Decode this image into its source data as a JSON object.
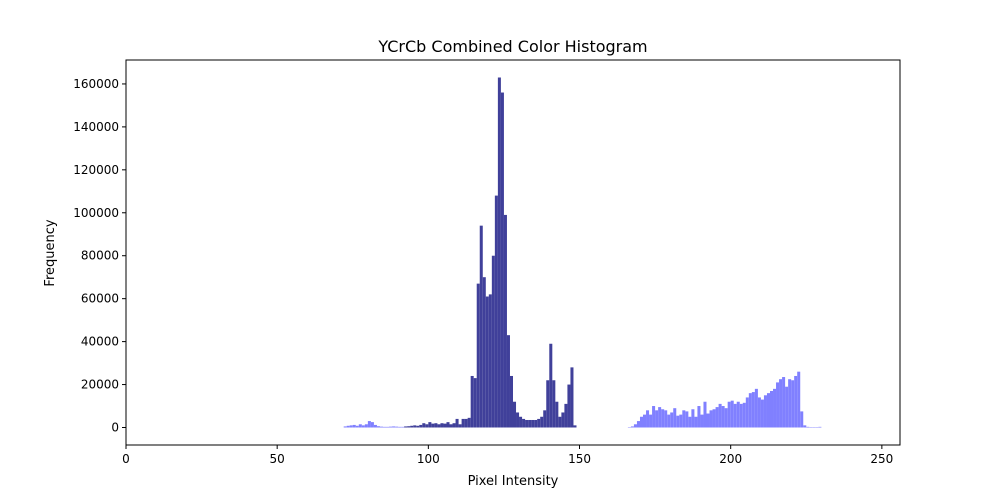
{
  "chart_data": {
    "type": "histogram",
    "title": "YCrCb Combined Color Histogram",
    "x_label": "Pixel Intensity",
    "y_label": "Frequency",
    "bins": [
      72,
      73,
      74,
      75,
      76,
      77,
      78,
      79,
      80,
      81,
      82,
      83,
      84,
      85,
      86,
      87,
      88,
      89,
      90,
      91,
      92,
      93,
      94,
      95,
      96,
      97,
      98,
      99,
      100,
      101,
      102,
      103,
      104,
      105,
      106,
      107,
      108,
      109,
      110,
      111,
      112,
      113,
      114,
      115,
      116,
      117,
      118,
      119,
      120,
      121,
      122,
      123,
      124,
      125,
      126,
      127,
      128,
      129,
      130,
      131,
      132,
      133,
      134,
      135,
      136,
      137,
      138,
      139,
      140,
      141,
      142,
      143,
      144,
      145,
      146,
      147,
      148,
      149,
      150,
      151,
      152,
      153,
      154,
      155,
      156,
      157,
      158,
      159,
      160,
      161,
      162,
      163,
      164,
      165,
      166,
      167,
      168,
      169,
      170,
      171,
      172,
      173,
      174,
      175,
      176,
      177,
      178,
      179,
      180,
      181,
      182,
      183,
      184,
      185,
      186,
      187,
      188,
      189,
      190,
      191,
      192,
      193,
      194,
      195,
      196,
      197,
      198,
      199,
      200,
      201,
      202,
      203,
      204,
      205,
      206,
      207,
      208,
      209,
      210,
      211,
      212,
      213,
      214,
      215,
      216,
      217,
      218,
      219,
      220,
      221,
      222,
      223,
      224,
      225,
      226,
      227,
      228,
      229,
      230
    ],
    "series": [
      {
        "color": "#8080ff",
        "values": [
          500,
          800,
          1000,
          1200,
          800,
          1500,
          1000,
          1500,
          3000,
          2500,
          1200,
          600,
          400,
          300,
          300,
          400,
          500,
          400,
          300,
          300,
          400,
          300,
          300,
          0,
          0,
          0,
          0,
          0,
          0,
          0,
          0,
          0,
          0,
          0,
          0,
          0,
          0,
          0,
          0,
          0,
          0,
          0,
          0,
          0,
          0,
          0,
          0,
          0,
          0,
          0,
          0,
          0,
          0,
          0,
          0,
          0,
          0,
          0,
          0,
          0,
          0,
          0,
          0,
          0,
          0,
          0,
          0,
          0,
          0,
          0,
          0,
          0,
          0,
          0,
          0,
          0,
          0,
          0,
          0,
          0,
          0,
          0,
          0,
          0,
          0,
          0,
          0,
          0,
          0,
          0,
          0,
          0,
          0,
          0,
          200,
          500,
          1500,
          3000,
          5000,
          6000,
          8000,
          6000,
          10000,
          8000,
          9500,
          8500,
          8000,
          6000,
          7000,
          9000,
          5500,
          6000,
          8000,
          7500,
          5000,
          8500,
          5000,
          10000,
          6000,
          12000,
          6500,
          8000,
          8500,
          9500,
          11000,
          10000,
          9000,
          12000,
          12500,
          11000,
          12000,
          11000,
          11500,
          14000,
          16000,
          16500,
          18000,
          14000,
          13000,
          15000,
          16000,
          17000,
          18000,
          21000,
          22500,
          23500,
          19000,
          22500,
          22000,
          24000,
          26000,
          7500,
          1000,
          300,
          200,
          200,
          200,
          300
        ]
      },
      {
        "color": "#40409a",
        "values": [
          0,
          0,
          0,
          0,
          0,
          0,
          0,
          0,
          0,
          0,
          0,
          0,
          0,
          0,
          0,
          0,
          0,
          0,
          0,
          0,
          500,
          600,
          800,
          1000,
          800,
          1200,
          2000,
          1500,
          2500,
          1800,
          2000,
          1500,
          2000,
          1800,
          2500,
          1500,
          2000,
          4000,
          1500,
          4000,
          4000,
          4500,
          24000,
          23000,
          67000,
          94000,
          70000,
          61000,
          62000,
          80000,
          108000,
          163000,
          156000,
          99000,
          43000,
          24000,
          12000,
          7000,
          5000,
          4000,
          3500,
          3500,
          3500,
          3500,
          4000,
          5000,
          8000,
          22000,
          39000,
          22000,
          12000,
          5000,
          7000,
          11000,
          20000,
          28000,
          1000,
          0,
          0,
          0,
          0,
          0,
          0,
          0,
          0,
          0,
          0,
          0,
          0,
          0,
          0,
          0,
          0,
          0,
          0,
          0,
          0,
          0,
          0,
          0,
          0,
          0,
          0,
          0,
          0,
          0,
          0,
          0,
          0,
          0,
          0,
          0,
          0,
          0,
          0,
          0,
          0,
          0,
          0,
          0,
          0,
          0,
          0,
          0,
          0,
          0,
          0,
          0,
          0,
          0,
          0,
          0,
          0,
          0,
          0,
          0,
          0,
          0,
          0,
          0,
          0,
          0,
          0,
          0,
          0,
          0,
          0,
          0,
          0,
          0,
          0,
          0,
          0,
          0,
          0,
          0,
          0,
          0,
          0,
          0,
          0,
          0,
          0,
          0,
          0,
          0
        ]
      }
    ],
    "xlim": [
      0,
      256
    ],
    "ylim": [
      -8150,
      171150
    ],
    "xticks": [
      0,
      50,
      100,
      150,
      200,
      250
    ],
    "yticks": [
      0,
      20000,
      40000,
      60000,
      80000,
      100000,
      120000,
      140000,
      160000
    ]
  }
}
